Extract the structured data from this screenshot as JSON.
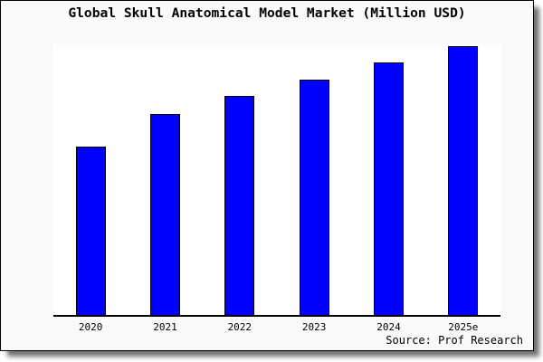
{
  "chart_data": {
    "type": "bar",
    "title": "Global Skull Anatomical Model Market (Million USD)",
    "categories": [
      "2020",
      "2021",
      "2022",
      "2023",
      "2024",
      "2025e"
    ],
    "values": [
      62.7,
      74.7,
      81.3,
      87.3,
      93.7,
      100
    ],
    "values_note": "no y-axis scale shown in image; values are relative heights with tallest bar (2025e) = 100",
    "xlabel": "",
    "ylabel": "",
    "ylim": [
      0,
      100.5
    ],
    "grid": false,
    "legend": false,
    "source": "Source: Prof Research",
    "bar_color": "#0000ff",
    "bar_border_color": "#000000"
  },
  "colors": {
    "frame_background": "#fafafa",
    "plot_background": "#ffffff",
    "frame_border": "#000000",
    "axis_line": "#000000",
    "text": "#000000"
  }
}
